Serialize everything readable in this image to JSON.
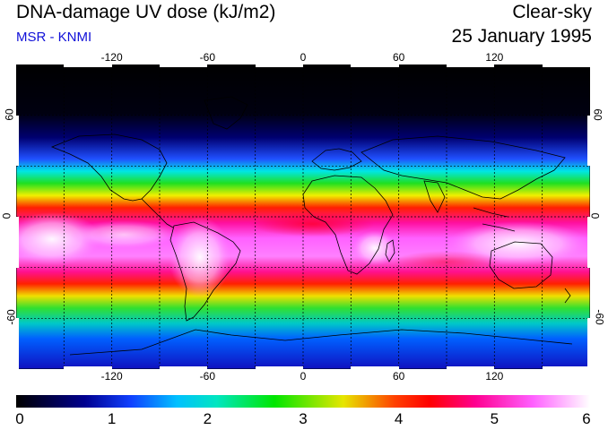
{
  "header": {
    "title": "DNA-damage UV dose (kJ/m2)",
    "subtitle": "MSR - KNMI",
    "condition": "Clear-sky",
    "date": "25 January 1995"
  },
  "map": {
    "lon_ticks": [
      "-120",
      "-60",
      "0",
      "60",
      "120"
    ],
    "lat_ticks": [
      "60",
      "0",
      "-60"
    ],
    "lon_values": [
      -120,
      -60,
      0,
      60,
      120
    ],
    "lat_values": [
      60,
      0,
      -60
    ],
    "lon_range": [
      -180,
      180
    ],
    "lat_range": [
      -90,
      90
    ],
    "grid": "dotted"
  },
  "colorbar": {
    "labels": [
      "0",
      "1",
      "2",
      "3",
      "4",
      "5",
      "6"
    ],
    "min": 0,
    "max": 6,
    "colors": [
      "#000000",
      "#0000c8",
      "#1e64ff",
      "#00e6e6",
      "#00e600",
      "#e6e600",
      "#ff0000",
      "#ff00a0",
      "#ff64ff",
      "#ffffff"
    ]
  }
}
